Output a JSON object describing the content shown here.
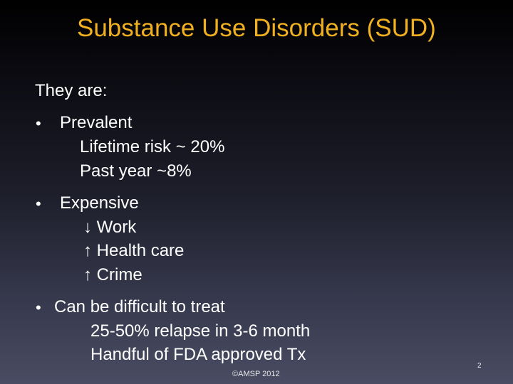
{
  "slide": {
    "title": "Substance Use Disorders (SUD)",
    "intro": "They are:",
    "bullet_glyph": "•",
    "bullets": [
      {
        "label": "Prevalent",
        "sub": [
          "Lifetime risk ~ 20%",
          "Past year ~8%"
        ]
      },
      {
        "label": "Expensive",
        "sub": [
          "↓ Work",
          "↑ Health care",
          "↑ Crime"
        ]
      },
      {
        "label": "Can be difficult to treat",
        "sub": [
          "25-50% relapse in 3-6 month",
          "Handful of FDA approved Tx"
        ]
      }
    ],
    "footer": "©AMSP 2012",
    "page_number": "2"
  },
  "colors": {
    "title": "#f0b020",
    "text": "#ffffff"
  }
}
